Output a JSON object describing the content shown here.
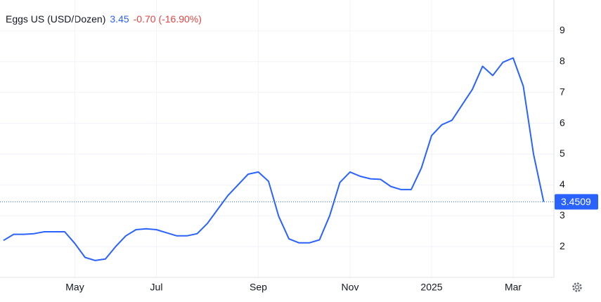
{
  "chart_data": {
    "type": "line",
    "title": "Eggs US (USD/Dozen)",
    "price": "3.45",
    "change": "-0.70 (-16.90%)",
    "categories": [
      null,
      null,
      null,
      null,
      null,
      null,
      null,
      "May",
      null,
      null,
      null,
      null,
      null,
      null,
      null,
      "Jul",
      null,
      null,
      null,
      null,
      null,
      null,
      null,
      null,
      null,
      "Sep",
      null,
      null,
      null,
      null,
      null,
      null,
      null,
      null,
      "Nov",
      null,
      null,
      null,
      null,
      null,
      null,
      null,
      "2025",
      null,
      null,
      null,
      null,
      null,
      null,
      null,
      "Mar",
      null,
      null,
      null
    ],
    "series": [
      {
        "name": "Eggs US",
        "color": "#2962ff",
        "values": [
          2.2,
          2.4,
          2.4,
          2.42,
          2.48,
          2.48,
          2.48,
          2.1,
          1.65,
          1.55,
          1.6,
          2.0,
          2.35,
          2.55,
          2.58,
          2.55,
          2.45,
          2.35,
          2.35,
          2.42,
          2.75,
          3.2,
          3.65,
          4.0,
          4.35,
          4.42,
          4.12,
          2.98,
          2.25,
          2.12,
          2.12,
          2.22,
          3.0,
          4.08,
          4.42,
          4.28,
          4.2,
          4.18,
          3.95,
          3.85,
          3.85,
          4.55,
          5.6,
          5.95,
          6.1,
          6.6,
          7.1,
          7.85,
          7.55,
          7.98,
          8.12,
          7.2,
          5.0,
          3.4509
        ]
      }
    ],
    "last_value": 3.4509,
    "ylim": [
      1,
      10
    ],
    "yticks": [
      2,
      3,
      4,
      5,
      6,
      7,
      8,
      9
    ],
    "grid": true
  }
}
